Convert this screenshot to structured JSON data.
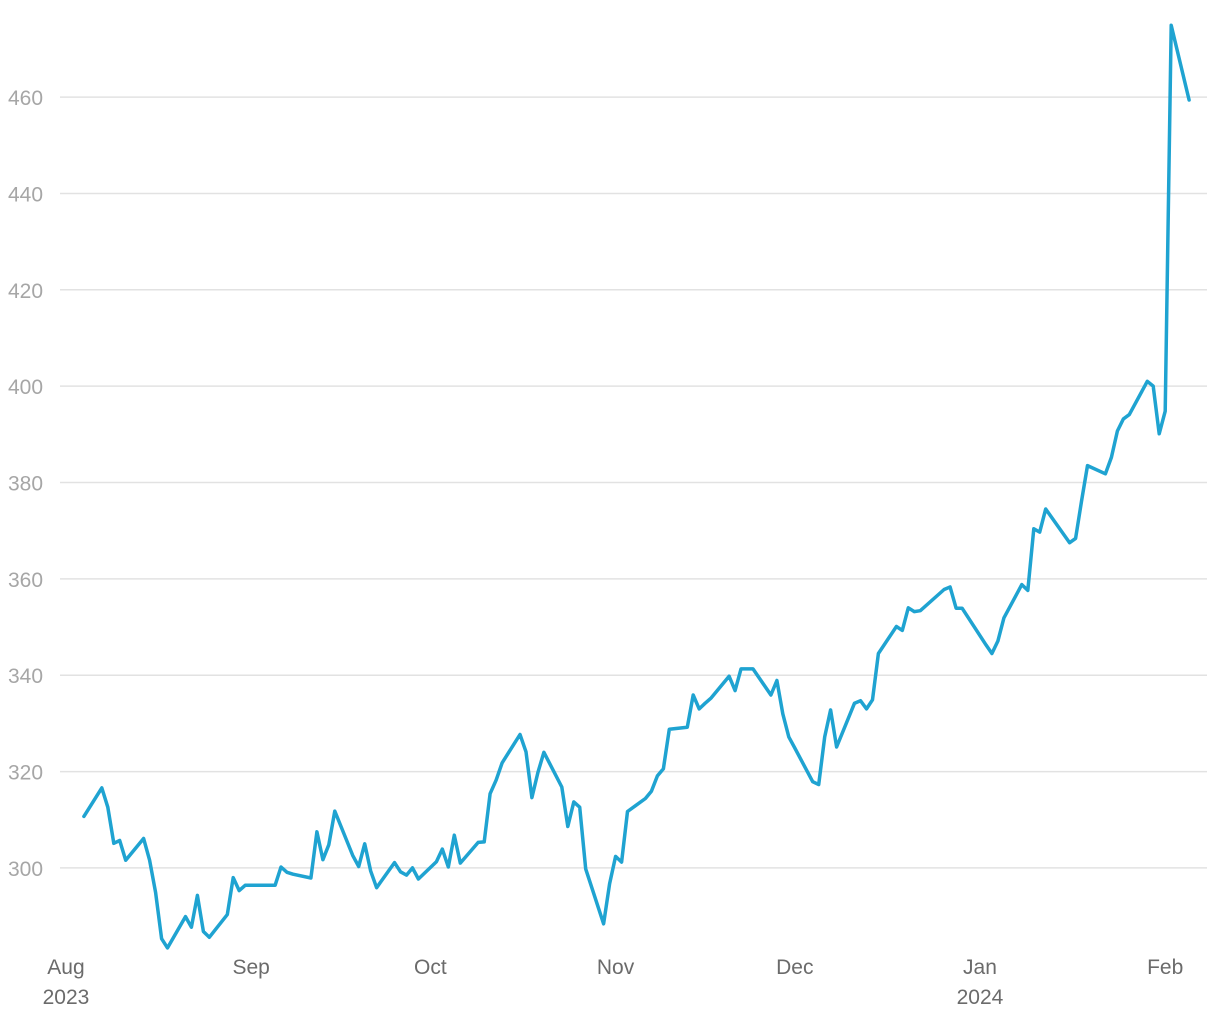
{
  "chart_data": {
    "type": "line",
    "title": "",
    "xlabel": "",
    "ylabel": "",
    "grid": true,
    "legend": "none",
    "ylim": [
      284,
      476
    ],
    "yticks": [
      300,
      320,
      340,
      360,
      380,
      400,
      420,
      440,
      460
    ],
    "xlim": [
      "2023-07-31",
      "2024-02-08"
    ],
    "xticks": [
      {
        "date": "2023-08-01",
        "label": "Aug",
        "sublabel": "2023"
      },
      {
        "date": "2023-09-01",
        "label": "Sep",
        "sublabel": ""
      },
      {
        "date": "2023-10-01",
        "label": "Oct",
        "sublabel": ""
      },
      {
        "date": "2023-11-01",
        "label": "Nov",
        "sublabel": ""
      },
      {
        "date": "2023-12-01",
        "label": "Dec",
        "sublabel": ""
      },
      {
        "date": "2024-01-01",
        "label": "Jan",
        "sublabel": "2024"
      },
      {
        "date": "2024-02-01",
        "label": "Feb",
        "sublabel": ""
      }
    ],
    "series": [
      {
        "color": "#1fa3d1",
        "x": [
          "2023-08-04",
          "2023-08-07",
          "2023-08-08",
          "2023-08-09",
          "2023-08-10",
          "2023-08-11",
          "2023-08-14",
          "2023-08-15",
          "2023-08-16",
          "2023-08-17",
          "2023-08-18",
          "2023-08-21",
          "2023-08-22",
          "2023-08-23",
          "2023-08-24",
          "2023-08-25",
          "2023-08-28",
          "2023-08-29",
          "2023-08-30",
          "2023-08-31",
          "2023-09-01",
          "2023-09-05",
          "2023-09-06",
          "2023-09-07",
          "2023-09-08",
          "2023-09-11",
          "2023-09-12",
          "2023-09-13",
          "2023-09-14",
          "2023-09-15",
          "2023-09-18",
          "2023-09-19",
          "2023-09-20",
          "2023-09-21",
          "2023-09-22",
          "2023-09-25",
          "2023-09-26",
          "2023-09-27",
          "2023-09-28",
          "2023-09-29",
          "2023-10-02",
          "2023-10-03",
          "2023-10-04",
          "2023-10-05",
          "2023-10-06",
          "2023-10-09",
          "2023-10-10",
          "2023-10-11",
          "2023-10-12",
          "2023-10-13",
          "2023-10-16",
          "2023-10-17",
          "2023-10-18",
          "2023-10-19",
          "2023-10-20",
          "2023-10-23",
          "2023-10-24",
          "2023-10-25",
          "2023-10-26",
          "2023-10-27",
          "2023-10-30",
          "2023-10-31",
          "2023-11-01",
          "2023-11-02",
          "2023-11-03",
          "2023-11-06",
          "2023-11-07",
          "2023-11-08",
          "2023-11-09",
          "2023-11-10",
          "2023-11-13",
          "2023-11-14",
          "2023-11-15",
          "2023-11-16",
          "2023-11-17",
          "2023-11-20",
          "2023-11-21",
          "2023-11-22",
          "2023-11-24",
          "2023-11-27",
          "2023-11-28",
          "2023-11-29",
          "2023-11-30",
          "2023-12-01",
          "2023-12-04",
          "2023-12-05",
          "2023-12-06",
          "2023-12-07",
          "2023-12-08",
          "2023-12-11",
          "2023-12-12",
          "2023-12-13",
          "2023-12-14",
          "2023-12-15",
          "2023-12-18",
          "2023-12-19",
          "2023-12-20",
          "2023-12-21",
          "2023-12-22",
          "2023-12-26",
          "2023-12-27",
          "2023-12-28",
          "2023-12-29",
          "2024-01-02",
          "2024-01-03",
          "2024-01-04",
          "2024-01-05",
          "2024-01-08",
          "2024-01-09",
          "2024-01-10",
          "2024-01-11",
          "2024-01-12",
          "2024-01-16",
          "2024-01-17",
          "2024-01-18",
          "2024-01-19",
          "2024-01-22",
          "2024-01-23",
          "2024-01-24",
          "2024-01-25",
          "2024-01-26",
          "2024-01-29",
          "2024-01-30",
          "2024-01-31",
          "2024-02-01",
          "2024-02-02",
          "2024-02-05"
        ],
        "values": [
          310.7,
          316.6,
          312.6,
          305.1,
          305.7,
          301.6,
          306.1,
          301.6,
          294.9,
          285.3,
          283.4,
          289.9,
          287.7,
          294.3,
          286.8,
          285.6,
          290.3,
          298.0,
          295.3,
          296.4,
          296.4,
          296.4,
          300.2,
          299.1,
          298.7,
          297.9,
          307.5,
          301.7,
          304.8,
          311.8,
          302.6,
          300.3,
          305.0,
          299.4,
          295.9,
          301.1,
          299.2,
          298.5,
          300.0,
          297.7,
          301.3,
          303.9,
          300.2,
          306.8,
          301.0,
          305.3,
          305.4,
          315.4,
          318.2,
          321.8,
          327.7,
          324.1,
          314.6,
          319.8,
          324.0,
          316.8,
          308.6,
          313.7,
          312.6,
          299.8,
          288.4,
          296.7,
          302.4,
          301.2,
          311.7,
          314.4,
          315.9,
          319.1,
          320.6,
          328.8,
          329.2,
          335.9,
          333.0,
          334.2,
          335.3,
          339.8,
          336.8,
          341.3,
          341.3,
          335.9,
          338.9,
          332.0,
          327.2,
          324.9,
          317.9,
          317.3,
          327.2,
          332.8,
          325.1,
          334.2,
          334.7,
          333.0,
          334.9,
          344.5,
          350.1,
          349.3,
          354.0,
          353.2,
          353.4,
          357.8,
          358.3,
          353.9,
          353.9,
          346.3,
          344.5,
          347.1,
          351.9,
          358.8,
          357.6,
          370.4,
          369.7,
          374.5,
          367.5,
          368.4,
          376.1,
          383.5,
          381.8,
          385.2,
          390.7,
          393.2,
          394.1,
          401.0,
          400.0,
          390.1,
          394.8,
          474.9,
          459.4
        ]
      }
    ]
  }
}
